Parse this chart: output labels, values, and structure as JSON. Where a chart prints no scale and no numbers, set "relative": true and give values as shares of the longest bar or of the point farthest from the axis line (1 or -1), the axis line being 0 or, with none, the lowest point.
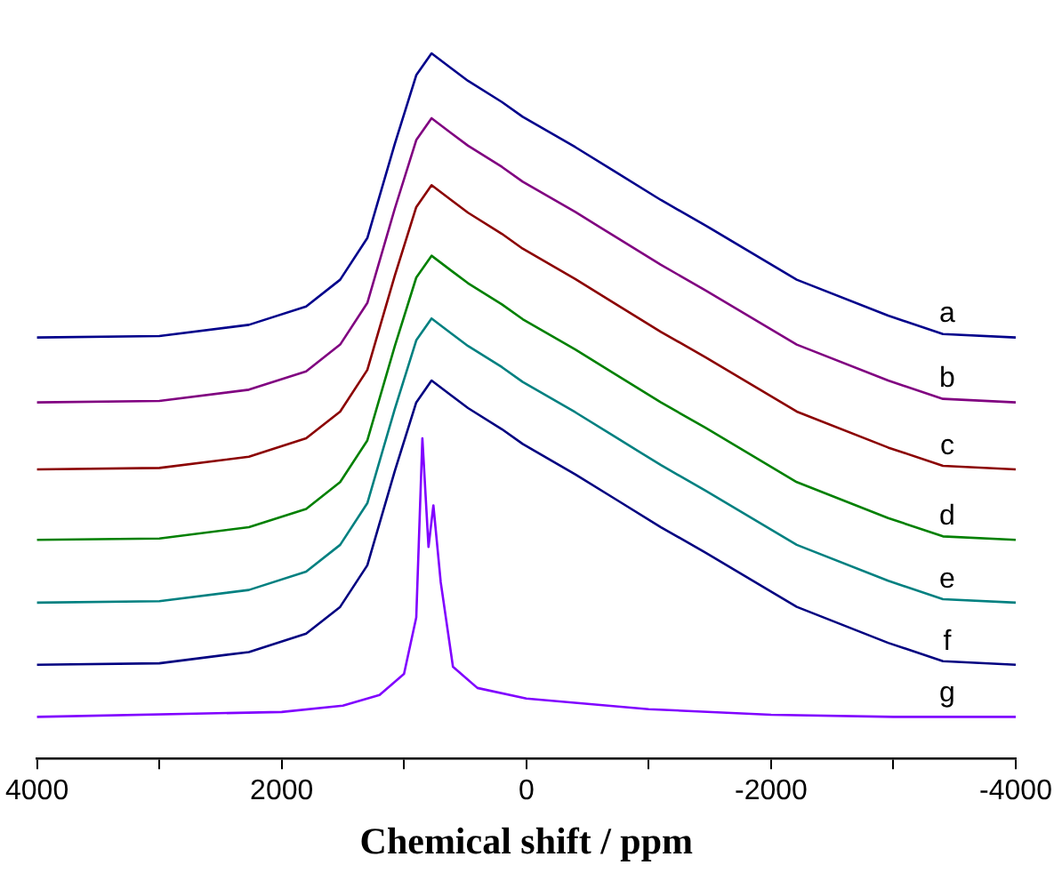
{
  "chart_data": {
    "type": "line",
    "relative": true,
    "xlabel": "Chemical shift / ppm",
    "xlim": [
      4000,
      -4000
    ],
    "xticks": [
      4000,
      {
        "value": 3000,
        "label": null
      },
      2000,
      {
        "value": 1000,
        "label": null
      },
      0,
      {
        "value": -1000,
        "label": null
      },
      -2000,
      {
        "value": -3000,
        "label": null
      },
      -4000
    ],
    "x": [
      4000,
      3000,
      2268,
      1800,
      1522,
      1300,
      1075,
      900,
      775,
      600,
      477,
      200,
      30,
      -400,
      -717,
      -1100,
      -1464,
      -2210,
      -2957,
      -3405,
      -4000
    ],
    "legend": false,
    "marker": "none",
    "line_style": "solid",
    "series": [
      {
        "name": "a",
        "color": "#00008b",
        "values": [
          0.597,
          0.599,
          0.615,
          0.641,
          0.679,
          0.738,
          0.872,
          0.969,
          1.0,
          0.977,
          0.961,
          0.931,
          0.91,
          0.867,
          0.833,
          0.792,
          0.756,
          0.679,
          0.628,
          0.602,
          0.597
        ]
      },
      {
        "name": "b",
        "color": "#800080",
        "values": [
          0.505,
          0.507,
          0.523,
          0.549,
          0.587,
          0.646,
          0.78,
          0.877,
          0.908,
          0.885,
          0.869,
          0.839,
          0.818,
          0.775,
          0.741,
          0.7,
          0.664,
          0.587,
          0.536,
          0.51,
          0.505
        ]
      },
      {
        "name": "c",
        "color": "#8b0000",
        "values": [
          0.41,
          0.412,
          0.428,
          0.454,
          0.492,
          0.551,
          0.685,
          0.782,
          0.813,
          0.79,
          0.774,
          0.744,
          0.723,
          0.68,
          0.646,
          0.605,
          0.569,
          0.492,
          0.441,
          0.415,
          0.41
        ]
      },
      {
        "name": "d",
        "color": "#008000",
        "values": [
          0.31,
          0.312,
          0.328,
          0.354,
          0.392,
          0.451,
          0.585,
          0.682,
          0.713,
          0.69,
          0.674,
          0.644,
          0.623,
          0.58,
          0.546,
          0.505,
          0.469,
          0.392,
          0.341,
          0.315,
          0.31
        ]
      },
      {
        "name": "e",
        "color": "#008080",
        "values": [
          0.221,
          0.223,
          0.239,
          0.265,
          0.303,
          0.362,
          0.496,
          0.593,
          0.624,
          0.601,
          0.585,
          0.555,
          0.534,
          0.491,
          0.457,
          0.416,
          0.38,
          0.303,
          0.252,
          0.226,
          0.221
        ]
      },
      {
        "name": "f",
        "color": "#000080",
        "values": [
          0.133,
          0.135,
          0.151,
          0.177,
          0.215,
          0.274,
          0.408,
          0.505,
          0.536,
          0.513,
          0.497,
          0.467,
          0.446,
          0.403,
          0.369,
          0.328,
          0.292,
          0.215,
          0.164,
          0.138,
          0.133
        ]
      },
      {
        "name": "g",
        "color": "#8000ff",
        "x": [
          4000,
          2000,
          1500,
          1200,
          1000,
          900,
          850,
          800,
          760,
          700,
          600,
          400,
          0,
          -1000,
          -2000,
          -3000,
          -4000
        ],
        "values": [
          0.059,
          0.066,
          0.075,
          0.09,
          0.12,
          0.2,
          0.454,
          0.3,
          0.359,
          0.25,
          0.13,
          0.1,
          0.085,
          0.07,
          0.062,
          0.059,
          0.059
        ]
      }
    ]
  }
}
